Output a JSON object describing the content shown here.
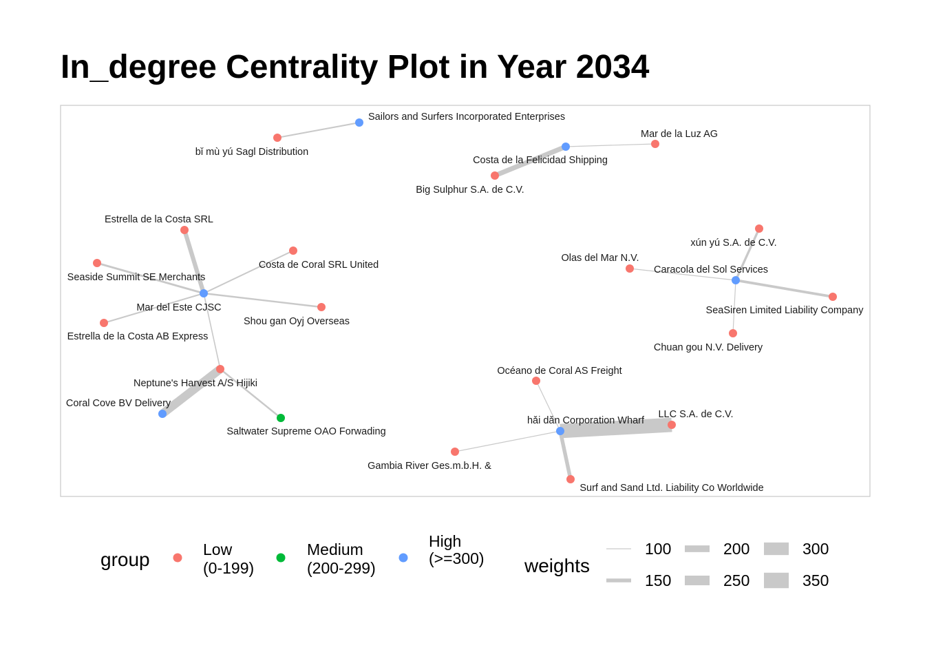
{
  "chart_data": {
    "type": "network",
    "title": "In_degree Centrality Plot in Year 2034",
    "groups": [
      {
        "key": "low",
        "label_line1": "Low",
        "label_line2": "(0-199)",
        "color": "#F8766D"
      },
      {
        "key": "medium",
        "label_line1": "Medium",
        "label_line2": "(200-299)",
        "color": "#00BA38"
      },
      {
        "key": "high",
        "label_line1": "High",
        "label_line2": "(>=300)",
        "color": "#619CFF"
      }
    ],
    "group_legend_title": "group",
    "weights_legend_title": "weights",
    "weight_scale": [
      100,
      150,
      200,
      250,
      300,
      350
    ],
    "nodes": [
      {
        "id": "sailors",
        "label": "Sailors and Surfers Incorporated Enterprises",
        "group": "high"
      },
      {
        "id": "bimu",
        "label": "bǐ mù yú Sagl Distribution",
        "group": "low"
      },
      {
        "id": "felicidad",
        "label": "Costa de la Felicidad Shipping",
        "group": "high"
      },
      {
        "id": "luz",
        "label": "Mar de la Luz AG",
        "group": "low"
      },
      {
        "id": "sulphur",
        "label": "Big Sulphur  S.A. de C.V.",
        "group": "low"
      },
      {
        "id": "este",
        "label": "Mar del Este CJSC",
        "group": "high"
      },
      {
        "id": "estrella_srl",
        "label": "Estrella de la Costa SRL",
        "group": "low"
      },
      {
        "id": "seaside",
        "label": "Seaside Summit SE Merchants",
        "group": "low"
      },
      {
        "id": "coral_srl",
        "label": "Costa de Coral SRL United",
        "group": "low"
      },
      {
        "id": "shougan",
        "label": "Shou gan  Oyj Overseas",
        "group": "low"
      },
      {
        "id": "estrella_ab",
        "label": "Estrella de la Costa AB Express",
        "group": "low"
      },
      {
        "id": "neptune",
        "label": "Neptune's Harvest A/S Hijiki",
        "group": "low"
      },
      {
        "id": "coralcove",
        "label": "Coral Cove BV Delivery",
        "group": "high"
      },
      {
        "id": "saltwater",
        "label": "Saltwater Supreme OAO Forwading",
        "group": "medium"
      },
      {
        "id": "caracola",
        "label": "Caracola del Sol Services",
        "group": "high"
      },
      {
        "id": "xunyu",
        "label": "xún yú S.A. de C.V.",
        "group": "low"
      },
      {
        "id": "olas",
        "label": "Olas del Mar N.V.",
        "group": "low"
      },
      {
        "id": "seasiren",
        "label": "SeaSiren Limited Liability Company",
        "group": "low"
      },
      {
        "id": "chuangou",
        "label": "Chuan gou  N.V. Delivery",
        "group": "low"
      },
      {
        "id": "haidan",
        "label": "hǎi dǎn Corporation Wharf",
        "group": "high"
      },
      {
        "id": "oceano",
        "label": "Océano de Coral AS Freight",
        "group": "low"
      },
      {
        "id": "llc",
        "label": "LLC S.A. de C.V.",
        "group": "low"
      },
      {
        "id": "gambia",
        "label": "Gambia River   Ges.m.b.H. &",
        "group": "low"
      },
      {
        "id": "surf",
        "label": "Surf and Sand Ltd. Liability Co Worldwide",
        "group": "low"
      }
    ],
    "edges": [
      {
        "source": "bimu",
        "target": "sailors",
        "weight": 110
      },
      {
        "source": "sulphur",
        "target": "felicidad",
        "weight": 170
      },
      {
        "source": "luz",
        "target": "felicidad",
        "weight": 100
      },
      {
        "source": "estrella_srl",
        "target": "este",
        "weight": 160
      },
      {
        "source": "seaside",
        "target": "este",
        "weight": 120
      },
      {
        "source": "coral_srl",
        "target": "este",
        "weight": 110
      },
      {
        "source": "shougan",
        "target": "este",
        "weight": 115
      },
      {
        "source": "estrella_ab",
        "target": "este",
        "weight": 110
      },
      {
        "source": "neptune",
        "target": "este",
        "weight": 105
      },
      {
        "source": "neptune",
        "target": "coralcove",
        "weight": 230
      },
      {
        "source": "neptune",
        "target": "saltwater",
        "weight": 115
      },
      {
        "source": "xunyu",
        "target": "caracola",
        "weight": 125
      },
      {
        "source": "olas",
        "target": "caracola",
        "weight": 100
      },
      {
        "source": "seasiren",
        "target": "caracola",
        "weight": 130
      },
      {
        "source": "chuangou",
        "target": "caracola",
        "weight": 100
      },
      {
        "source": "oceano",
        "target": "haidan",
        "weight": 100
      },
      {
        "source": "llc",
        "target": "haidan",
        "weight": 330
      },
      {
        "source": "gambia",
        "target": "haidan",
        "weight": 100
      },
      {
        "source": "surf",
        "target": "haidan",
        "weight": 150
      }
    ]
  }
}
